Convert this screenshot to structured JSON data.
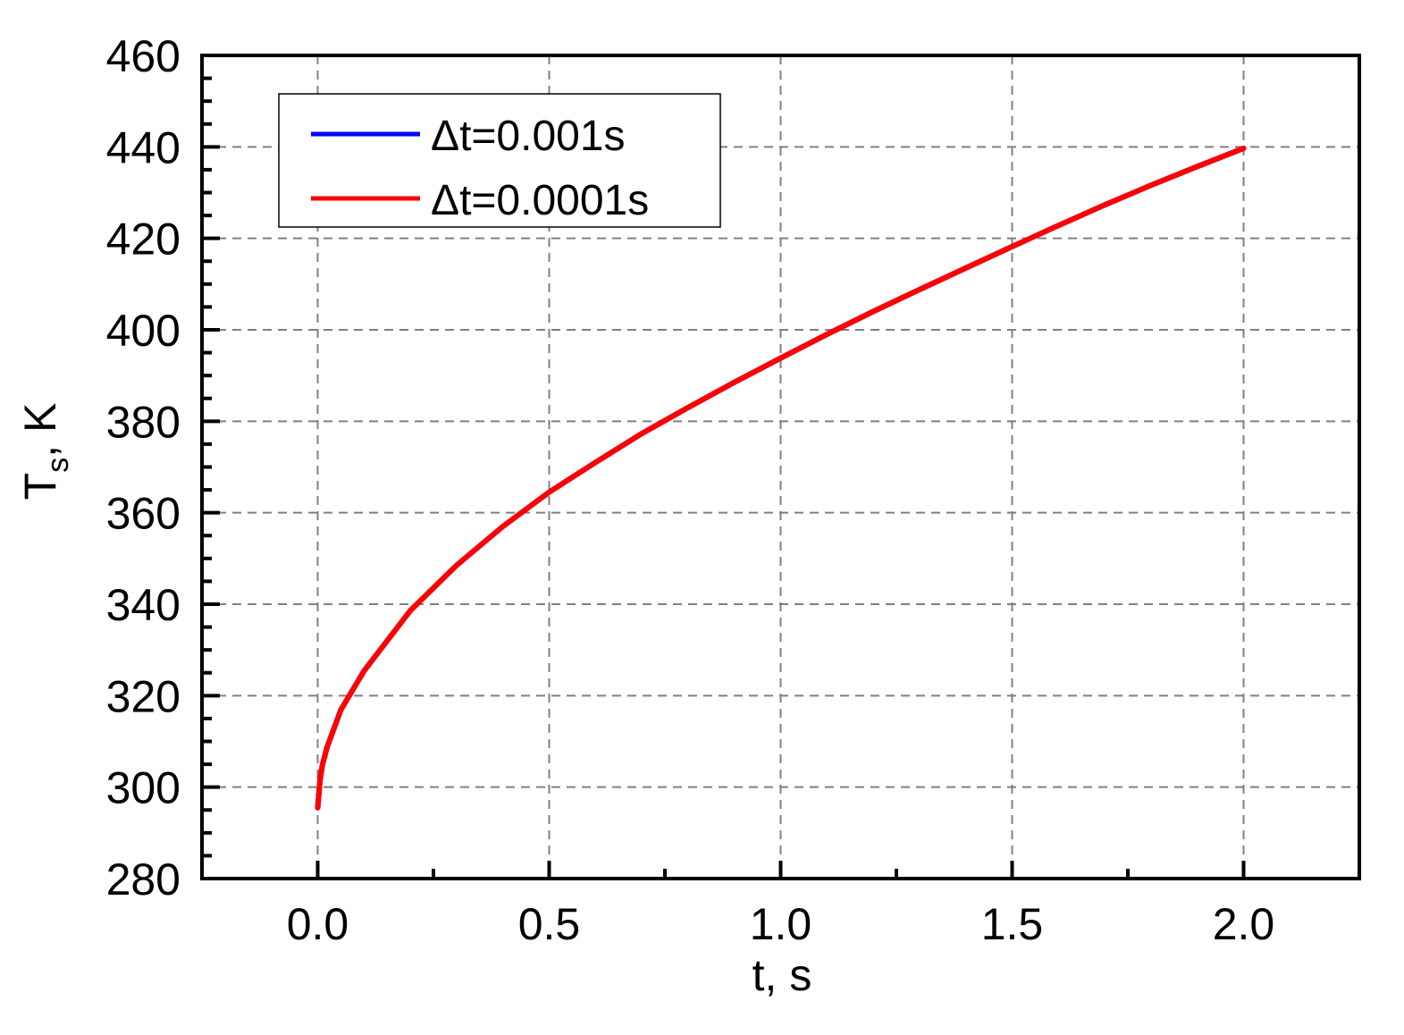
{
  "chart_data": {
    "type": "line",
    "title": "",
    "xlabel": "t, s",
    "ylabel": {
      "main": "T",
      "subscript": "s",
      "suffix": ", K"
    },
    "xlim": [
      -0.25,
      2.25
    ],
    "ylim": [
      280,
      460
    ],
    "xticks": [
      0.0,
      0.5,
      1.0,
      1.5,
      2.0
    ],
    "xtick_labels": [
      "0.0",
      "0.5",
      "1.0",
      "1.5",
      "2.0"
    ],
    "yticks": [
      280,
      300,
      320,
      340,
      360,
      380,
      400,
      420,
      440,
      460
    ],
    "ytick_labels": [
      "280",
      "300",
      "320",
      "340",
      "360",
      "380",
      "400",
      "420",
      "440",
      "460"
    ],
    "grid": true,
    "legend_position": "top-left",
    "series": [
      {
        "name": "Δt=0.001s",
        "color": "#0000ff",
        "x": [
          0.0,
          0.005,
          0.01,
          0.02,
          0.05,
          0.1,
          0.2,
          0.3,
          0.4,
          0.5,
          0.6,
          0.7,
          0.8,
          0.9,
          1.0,
          1.1,
          1.2,
          1.3,
          1.4,
          1.5,
          1.6,
          1.7,
          1.8,
          1.9,
          2.0
        ],
        "y": [
          295.5,
          301.5,
          304.8,
          308.7,
          316.9,
          325.4,
          338.6,
          348.5,
          357.0,
          364.5,
          371.0,
          377.3,
          383.0,
          388.5,
          393.8,
          399.0,
          404.0,
          408.8,
          413.5,
          418.2,
          422.8,
          427.3,
          431.6,
          435.7,
          439.7
        ]
      },
      {
        "name": "Δt=0.0001s",
        "color": "#ff0000",
        "x": [
          0.0,
          0.005,
          0.01,
          0.02,
          0.05,
          0.1,
          0.2,
          0.3,
          0.4,
          0.5,
          0.6,
          0.7,
          0.8,
          0.9,
          1.0,
          1.1,
          1.2,
          1.3,
          1.4,
          1.5,
          1.6,
          1.7,
          1.8,
          1.9,
          2.0
        ],
        "y": [
          295.5,
          301.5,
          304.8,
          308.7,
          316.9,
          325.4,
          338.6,
          348.5,
          357.0,
          364.5,
          371.0,
          377.3,
          383.0,
          388.5,
          393.8,
          399.0,
          404.0,
          408.8,
          413.5,
          418.2,
          422.8,
          427.3,
          431.6,
          435.7,
          439.7
        ]
      }
    ]
  }
}
